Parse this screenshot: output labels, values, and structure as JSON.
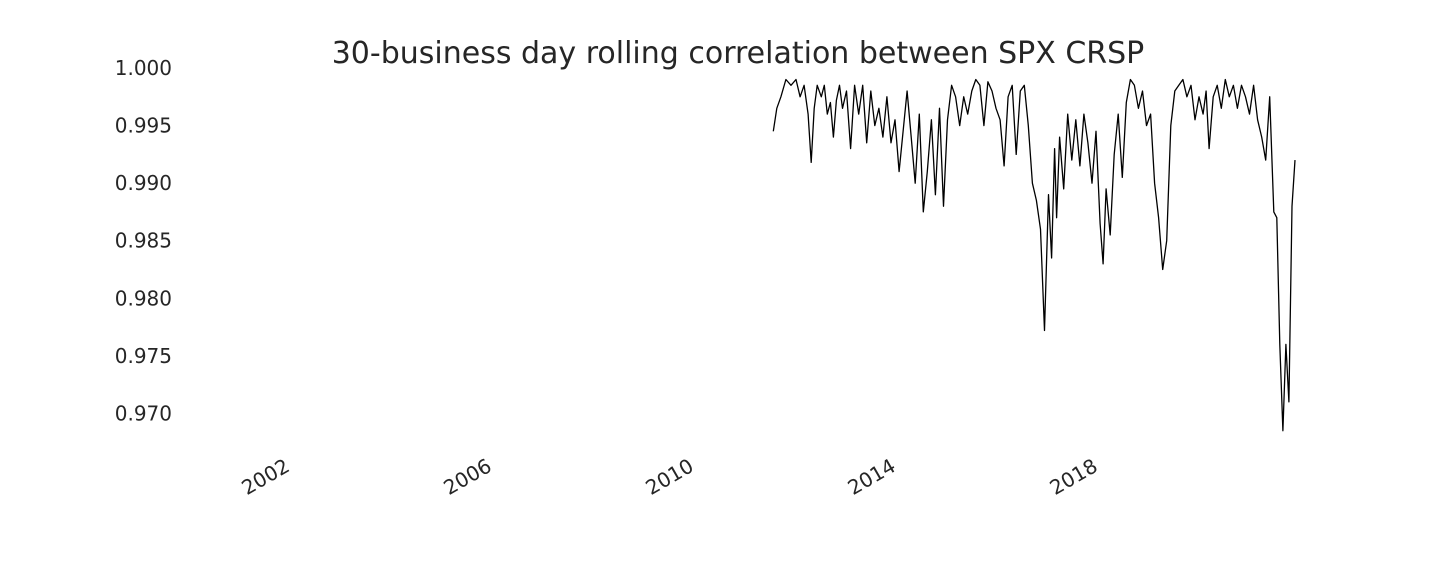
{
  "chart_data": {
    "type": "line",
    "title": "30-business day rolling correlation between SPX CRSP",
    "xlabel": "",
    "ylabel": "",
    "grid": false,
    "xlim": [
      2000.0,
      2021.9
    ],
    "ylim": [
      0.967,
      1.0
    ],
    "x_ticks": [
      2002,
      2006,
      2010,
      2014,
      2018
    ],
    "y_ticks": [
      "1.000",
      "0.995",
      "0.990",
      "0.985",
      "0.980",
      "0.975",
      "0.970"
    ],
    "series": [
      {
        "color": "#000000",
        "x": [
          2011.55,
          2011.62,
          2011.7,
          2011.8,
          2011.9,
          2012.0,
          2012.08,
          2012.16,
          2012.24,
          2012.3,
          2012.36,
          2012.42,
          2012.5,
          2012.56,
          2012.62,
          2012.68,
          2012.74,
          2012.8,
          2012.86,
          2012.92,
          2013.0,
          2013.08,
          2013.16,
          2013.24,
          2013.32,
          2013.4,
          2013.48,
          2013.56,
          2013.64,
          2013.72,
          2013.8,
          2013.88,
          2013.96,
          2014.04,
          2014.12,
          2014.2,
          2014.28,
          2014.36,
          2014.44,
          2014.52,
          2014.6,
          2014.68,
          2014.76,
          2014.84,
          2014.92,
          2015.0,
          2015.08,
          2015.16,
          2015.24,
          2015.32,
          2015.4,
          2015.48,
          2015.56,
          2015.64,
          2015.72,
          2015.8,
          2015.88,
          2015.96,
          2016.04,
          2016.12,
          2016.2,
          2016.28,
          2016.36,
          2016.44,
          2016.52,
          2016.6,
          2016.68,
          2016.76,
          2016.84,
          2016.92,
          2017.0,
          2017.06,
          2017.12,
          2017.16,
          2017.22,
          2017.3,
          2017.38,
          2017.46,
          2017.54,
          2017.62,
          2017.7,
          2017.78,
          2017.86,
          2017.94,
          2018.02,
          2018.08,
          2018.14,
          2018.22,
          2018.3,
          2018.38,
          2018.46,
          2018.54,
          2018.62,
          2018.7,
          2018.78,
          2018.86,
          2018.94,
          2019.02,
          2019.1,
          2019.18,
          2019.26,
          2019.34,
          2019.42,
          2019.5,
          2019.58,
          2019.66,
          2019.74,
          2019.82,
          2019.9,
          2019.98,
          2020.06,
          2020.12,
          2020.18,
          2020.26,
          2020.34,
          2020.42,
          2020.5,
          2020.58,
          2020.66,
          2020.74,
          2020.82,
          2020.9,
          2020.98,
          2021.06,
          2021.14,
          2021.22,
          2021.3,
          2021.38,
          2021.46,
          2021.52,
          2021.58,
          2021.64,
          2021.7,
          2021.76,
          2021.82,
          2021.88
        ],
        "y": [
          0.9945,
          0.9965,
          0.9975,
          0.999,
          0.9985,
          0.999,
          0.9975,
          0.9985,
          0.996,
          0.9918,
          0.9965,
          0.9985,
          0.9975,
          0.9985,
          0.996,
          0.997,
          0.994,
          0.9972,
          0.9985,
          0.9965,
          0.998,
          0.993,
          0.9985,
          0.996,
          0.9985,
          0.9935,
          0.998,
          0.995,
          0.9965,
          0.994,
          0.9975,
          0.9935,
          0.9955,
          0.991,
          0.9945,
          0.998,
          0.994,
          0.99,
          0.996,
          0.9875,
          0.991,
          0.9955,
          0.989,
          0.9965,
          0.988,
          0.9955,
          0.9985,
          0.9975,
          0.995,
          0.9975,
          0.996,
          0.998,
          0.999,
          0.9985,
          0.995,
          0.9988,
          0.998,
          0.9965,
          0.9955,
          0.9915,
          0.9975,
          0.9985,
          0.9925,
          0.998,
          0.9985,
          0.995,
          0.99,
          0.9885,
          0.986,
          0.9772,
          0.989,
          0.9835,
          0.993,
          0.987,
          0.994,
          0.9895,
          0.996,
          0.992,
          0.9955,
          0.9915,
          0.996,
          0.9935,
          0.99,
          0.9945,
          0.9865,
          0.983,
          0.9895,
          0.9855,
          0.9925,
          0.996,
          0.9905,
          0.997,
          0.999,
          0.9985,
          0.9965,
          0.998,
          0.995,
          0.996,
          0.99,
          0.987,
          0.9825,
          0.985,
          0.995,
          0.998,
          0.9985,
          0.999,
          0.9975,
          0.9985,
          0.9955,
          0.9975,
          0.996,
          0.998,
          0.993,
          0.9975,
          0.9985,
          0.9965,
          0.999,
          0.9975,
          0.9985,
          0.9965,
          0.9985,
          0.9975,
          0.996,
          0.9985,
          0.9955,
          0.994,
          0.992,
          0.9975,
          0.9875,
          0.987,
          0.976,
          0.9685,
          0.976,
          0.971,
          0.988,
          0.992
        ]
      }
    ]
  }
}
